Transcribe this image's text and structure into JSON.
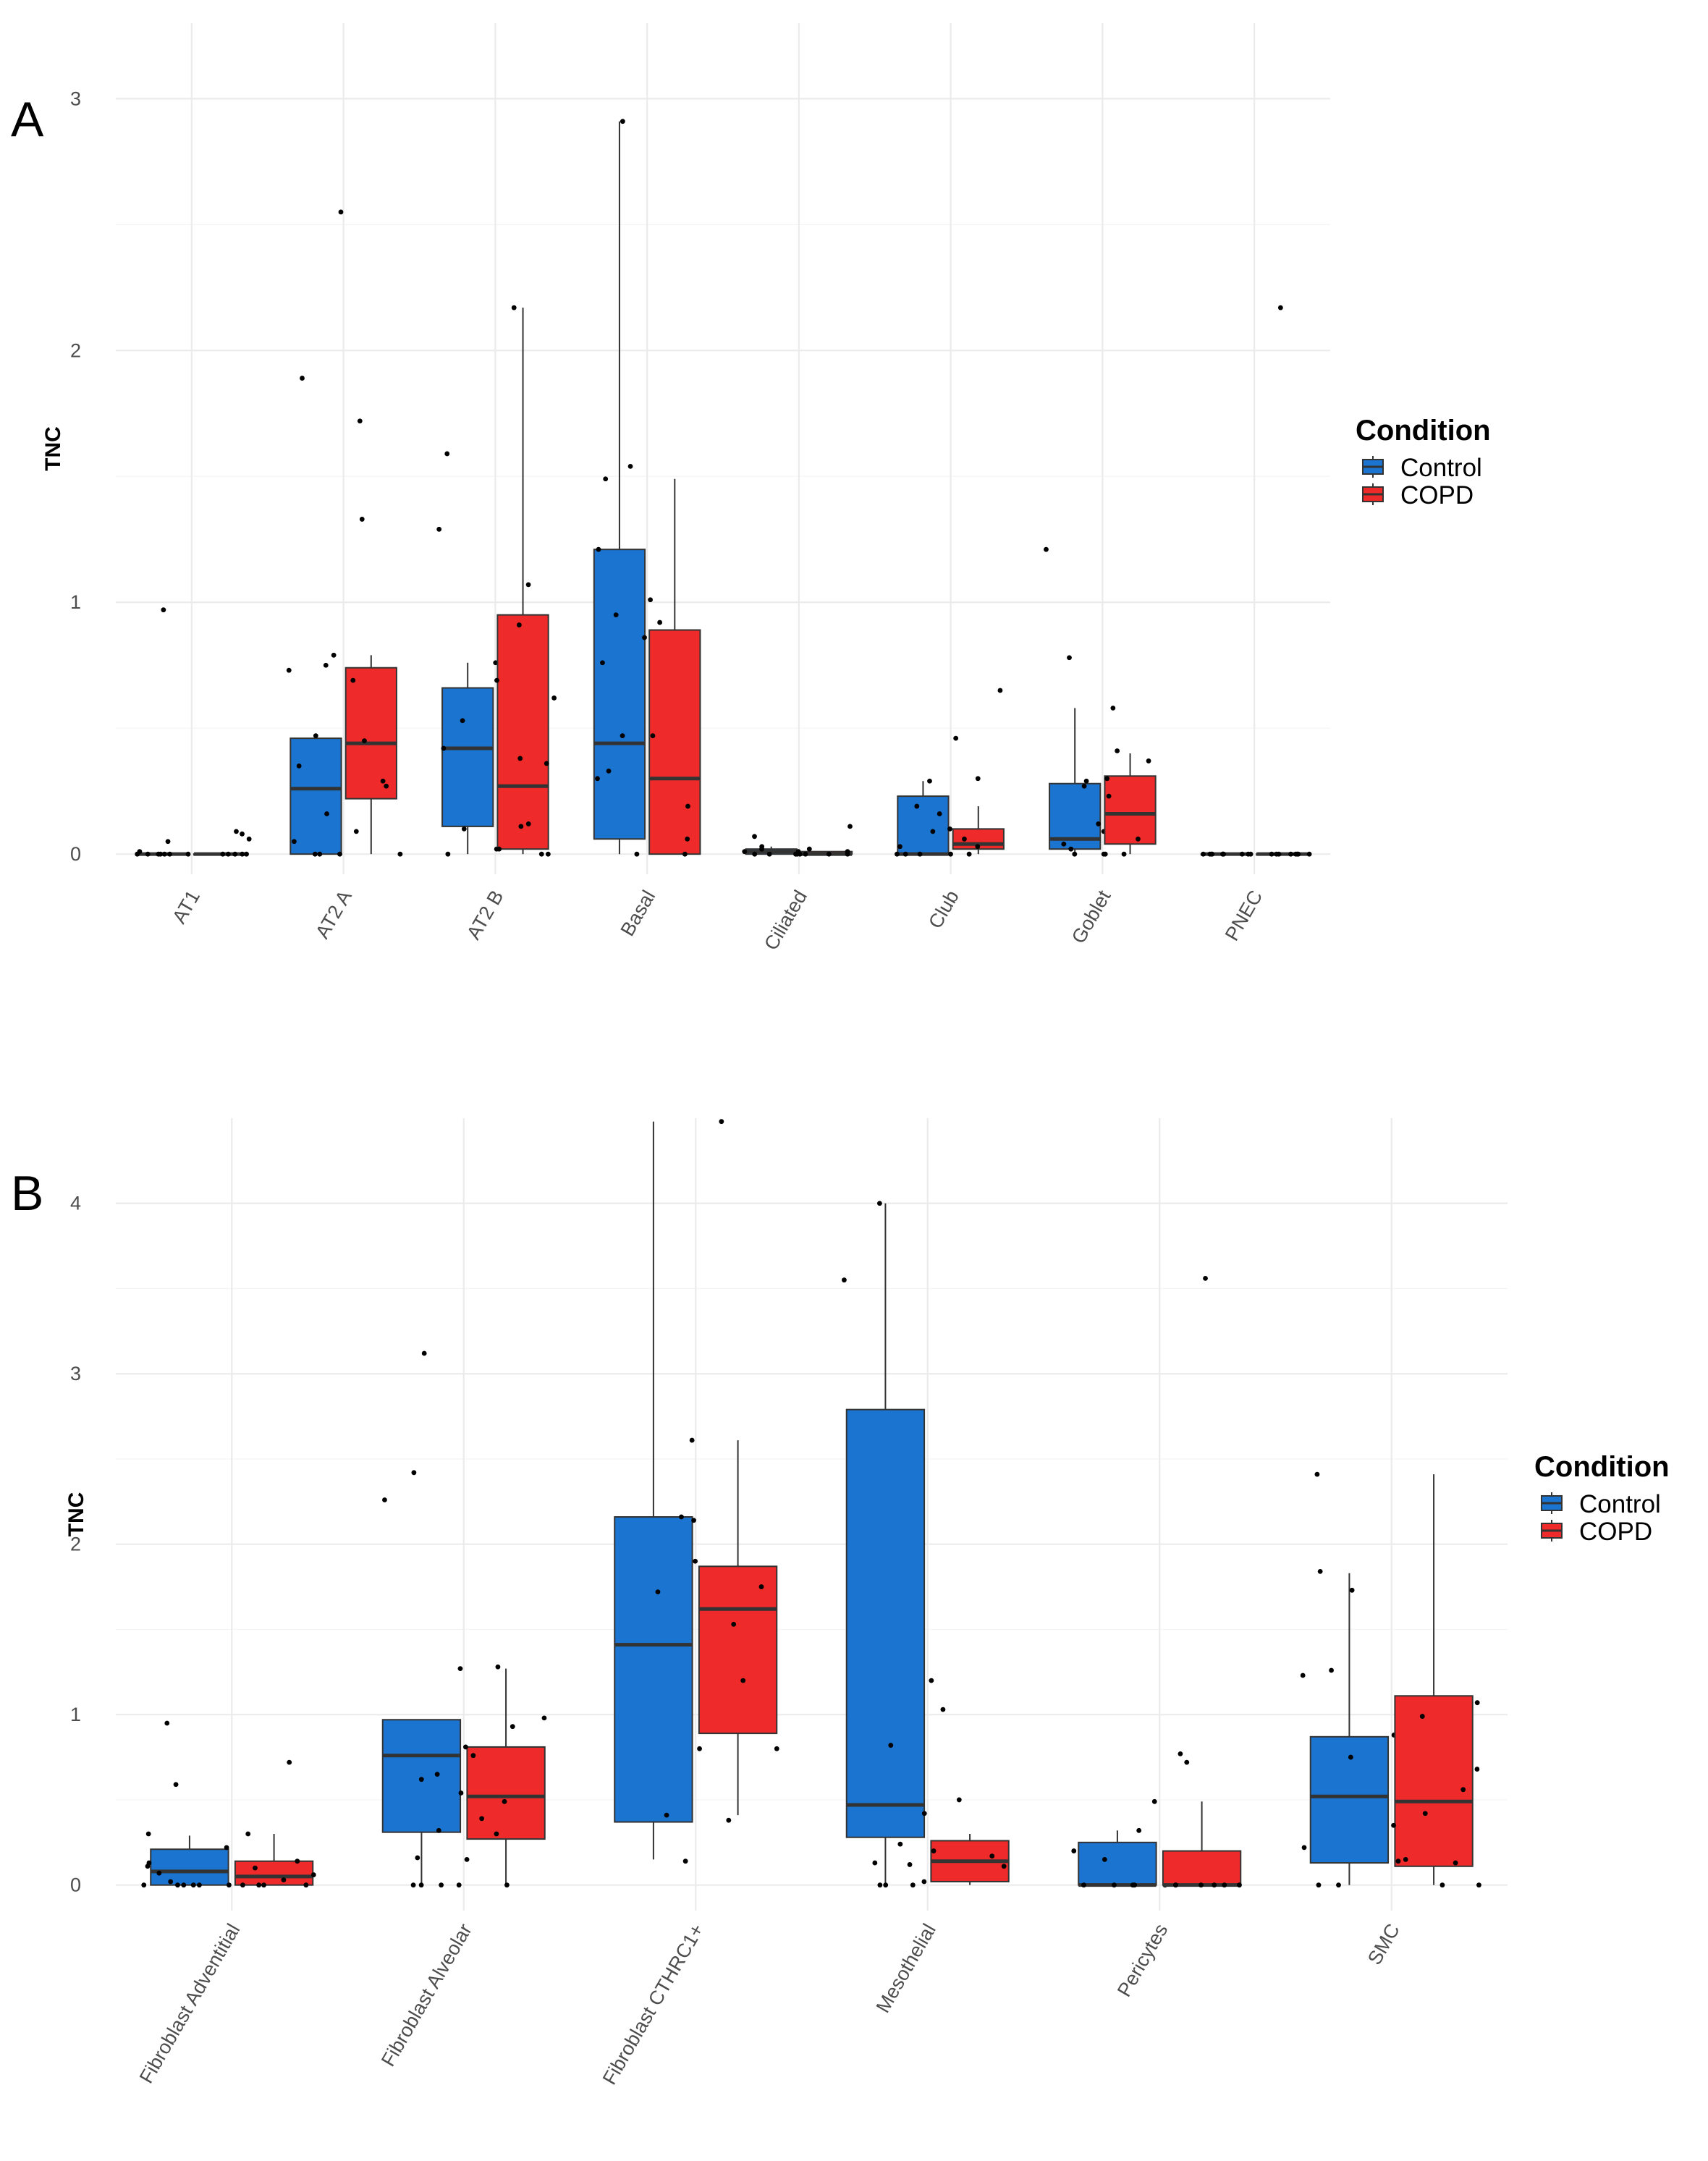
{
  "colors": {
    "Control": "#1a74d0",
    "COPD": "#ee2a2a"
  },
  "legend": {
    "title": "Condition",
    "labels": [
      "Control",
      "COPD"
    ]
  },
  "chart_data": [
    {
      "panel_label": "A",
      "type": "boxplot",
      "ylabel": "TNC",
      "ylim": [
        -0.08,
        3.3
      ],
      "yticks": [
        "0",
        "1",
        "2",
        "3"
      ],
      "categories": [
        "AT1",
        "AT2 A",
        "AT2 B",
        "Basal",
        "Ciliated",
        "Club",
        "Goblet",
        "PNEC"
      ],
      "series": [
        {
          "name": "Control",
          "boxes": [
            {
              "q1": 0,
              "median": 0,
              "q3": 0,
              "lo": 0,
              "hi": 0,
              "points": [
                0.97,
                0.05,
                0.01,
                0,
                0,
                0,
                0,
                0,
                0,
                0
              ]
            },
            {
              "q1": 0,
              "median": 0.26,
              "q3": 0.46,
              "lo": 0,
              "hi": 0.46,
              "points": [
                1.89,
                0.79,
                0.75,
                0.73,
                0.47,
                0.35,
                0.16,
                0.05,
                0,
                0
              ]
            },
            {
              "q1": 0.11,
              "median": 0.42,
              "q3": 0.66,
              "lo": 0,
              "hi": 0.76,
              "points": [
                1.59,
                1.29,
                0.76,
                0.69,
                0.42,
                0.1,
                0.02,
                0,
                0.53
              ]
            },
            {
              "q1": 0.06,
              "median": 0.44,
              "q3": 1.21,
              "lo": 0,
              "hi": 2.91,
              "points": [
                2.91,
                1.54,
                1.49,
                1.21,
                1.01,
                0.95,
                0.76,
                0.47,
                0.33,
                0.3,
                0
              ]
            },
            {
              "q1": 0,
              "median": 0.01,
              "q3": 0.02,
              "lo": 0,
              "hi": 0.03,
              "points": [
                0.03,
                0.02,
                0.01,
                0.01,
                0,
                0,
                0,
                0.07
              ]
            },
            {
              "q1": 0,
              "median": 0,
              "q3": 0.23,
              "lo": 0,
              "hi": 0.29,
              "points": [
                0.29,
                0.19,
                0.16,
                0.09,
                0.03,
                0,
                0,
                0
              ]
            },
            {
              "q1": 0.02,
              "median": 0.06,
              "q3": 0.28,
              "lo": 0,
              "hi": 0.58,
              "points": [
                1.21,
                0.78,
                0.29,
                0.27,
                0.09,
                0.04,
                0.02,
                0
              ]
            },
            {
              "q1": 0,
              "median": 0,
              "q3": 0,
              "lo": 0,
              "hi": 0,
              "points": [
                0,
                0,
                0,
                0,
                0,
                0,
                0,
                0,
                0
              ]
            }
          ]
        },
        {
          "name": "COPD",
          "boxes": [
            {
              "q1": 0,
              "median": 0,
              "q3": 0,
              "lo": 0,
              "hi": 0,
              "points": [
                0.09,
                0.08,
                0.06,
                0,
                0,
                0,
                0,
                0
              ]
            },
            {
              "q1": 0.22,
              "median": 0.44,
              "q3": 0.74,
              "lo": 0,
              "hi": 0.79,
              "points": [
                2.55,
                1.72,
                1.33,
                0.69,
                0.45,
                0.29,
                0.27,
                0.09,
                0,
                0
              ]
            },
            {
              "q1": 0.02,
              "median": 0.27,
              "q3": 0.95,
              "lo": 0,
              "hi": 2.17,
              "points": [
                2.17,
                1.07,
                0.91,
                0.69,
                0.62,
                0.38,
                0.36,
                0.12,
                0.11,
                0.02,
                0,
                0
              ]
            },
            {
              "q1": 0,
              "median": 0.3,
              "q3": 0.89,
              "lo": 0,
              "hi": 1.49,
              "points": [
                0.92,
                0.86,
                0.47,
                0.19,
                0.06,
                0
              ]
            },
            {
              "q1": 0,
              "median": 0,
              "q3": 0.01,
              "lo": 0,
              "hi": 0.01,
              "points": [
                0.11,
                0.02,
                0.01,
                0,
                0,
                0,
                0,
                0,
                0
              ]
            },
            {
              "q1": 0.02,
              "median": 0.04,
              "q3": 0.1,
              "lo": 0,
              "hi": 0.19,
              "points": [
                0.65,
                0.46,
                0.3,
                0.1,
                0.06,
                0.03,
                0,
                0
              ]
            },
            {
              "q1": 0.04,
              "median": 0.16,
              "q3": 0.31,
              "lo": 0,
              "hi": 0.4,
              "points": [
                0.58,
                0.41,
                0.37,
                0.3,
                0.23,
                0.12,
                0.06,
                0,
                0,
                0
              ]
            },
            {
              "q1": 0,
              "median": 0,
              "q3": 0,
              "lo": 0,
              "hi": 0,
              "points": [
                2.17,
                0,
                0,
                0,
                0,
                0,
                0,
                0,
                0,
                0
              ]
            }
          ]
        }
      ]
    },
    {
      "panel_label": "B",
      "type": "boxplot",
      "ylabel": "TNC",
      "ylim": [
        -0.15,
        4.5
      ],
      "yticks": [
        "0",
        "1",
        "2",
        "3",
        "4"
      ],
      "categories": [
        "Fibroblast Adventitial",
        "Fibroblast Alveolar",
        "Fibroblast CTHRC1+",
        "Mesothelial",
        "Pericytes",
        "SMC"
      ],
      "series": [
        {
          "name": "Control",
          "boxes": [
            {
              "q1": 0,
              "median": 0.08,
              "q3": 0.21,
              "lo": 0,
              "hi": 0.29,
              "points": [
                0.95,
                0.59,
                0.3,
                0.22,
                0.13,
                0.11,
                0.07,
                0.02,
                0,
                0,
                0,
                0,
                0,
                0
              ]
            },
            {
              "q1": 0.31,
              "median": 0.76,
              "q3": 0.97,
              "lo": 0,
              "hi": 0.97,
              "points": [
                3.12,
                2.42,
                2.26,
                1.27,
                0.65,
                0.62,
                0.54,
                0.32,
                0.16,
                0.15,
                0,
                0,
                0,
                0
              ]
            },
            {
              "q1": 0.37,
              "median": 1.41,
              "q3": 2.16,
              "lo": 0.15,
              "hi": 4.48,
              "points": [
                2.16,
                2.14,
                1.72,
                1.41,
                0.41,
                0.14
              ]
            },
            {
              "q1": 0.28,
              "median": 0.47,
              "q3": 2.79,
              "lo": 0,
              "hi": 4.0,
              "points": [
                4.0,
                3.55,
                1.2,
                0.82,
                0.24,
                0.13,
                0.12,
                0,
                0,
                0
              ]
            },
            {
              "q1": 0,
              "median": 0,
              "q3": 0.25,
              "lo": 0,
              "hi": 0.32,
              "points": [
                0.49,
                0.32,
                0.2,
                0.15,
                0,
                0,
                0,
                0,
                0
              ]
            },
            {
              "q1": 0.13,
              "median": 0.52,
              "q3": 0.87,
              "lo": 0,
              "hi": 1.83,
              "points": [
                2.41,
                1.84,
                1.73,
                1.26,
                1.23,
                0.88,
                0.75,
                0.22,
                0,
                0
              ]
            }
          ]
        },
        {
          "name": "COPD",
          "boxes": [
            {
              "q1": 0,
              "median": 0.05,
              "q3": 0.14,
              "lo": 0,
              "hi": 0.3,
              "points": [
                0.72,
                0.3,
                0.14,
                0.1,
                0.06,
                0.03,
                0,
                0,
                0,
                0
              ]
            },
            {
              "q1": 0.27,
              "median": 0.52,
              "q3": 0.81,
              "lo": 0,
              "hi": 1.27,
              "points": [
                1.28,
                0.98,
                0.93,
                0.81,
                0.76,
                0.49,
                0.39,
                0.3,
                0
              ]
            },
            {
              "q1": 0.89,
              "median": 1.62,
              "q3": 1.87,
              "lo": 0.41,
              "hi": 2.61,
              "points": [
                4.48,
                2.61,
                1.9,
                1.75,
                1.53,
                1.2,
                0.8,
                0.8,
                0.38
              ]
            },
            {
              "q1": 0.02,
              "median": 0.14,
              "q3": 0.26,
              "lo": 0,
              "hi": 0.3,
              "points": [
                1.03,
                0.5,
                0.42,
                0.2,
                0.17,
                0.11,
                0.02
              ]
            },
            {
              "q1": 0,
              "median": 0,
              "q3": 0.2,
              "lo": 0,
              "hi": 0.49,
              "points": [
                3.56,
                0.77,
                0.72,
                0,
                0,
                0,
                0,
                0,
                0
              ]
            },
            {
              "q1": 0.11,
              "median": 0.49,
              "q3": 1.11,
              "lo": 0,
              "hi": 2.41,
              "points": [
                1.07,
                0.99,
                0.68,
                0.56,
                0.42,
                0.35,
                0.15,
                0.14,
                0.13,
                0,
                0
              ]
            }
          ]
        }
      ]
    }
  ]
}
